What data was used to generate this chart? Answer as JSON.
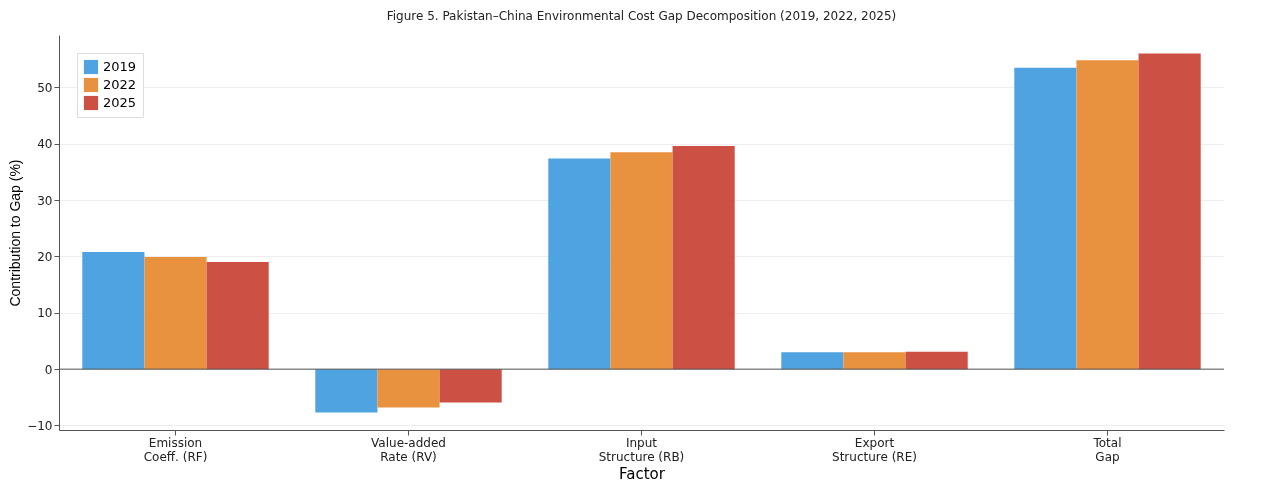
{
  "chart_data": {
    "type": "bar",
    "title": "Figure 5. Pakistan–China Environmental Cost Gap Decomposition (2019, 2022, 2025)",
    "xlabel": "Factor",
    "ylabel": "Contribution to Gap (%)",
    "categories": [
      "Emission Coeff. (RF)",
      "Value-added Rate (RV)",
      "Input Structure (RB)",
      "Export Structure (RE)",
      "Total Gap"
    ],
    "series": [
      {
        "name": "2019",
        "color": "#4fa3e0",
        "values": [
          20.8,
          -7.7,
          37.4,
          3.0,
          53.5
        ]
      },
      {
        "name": "2022",
        "color": "#e8913f",
        "values": [
          19.9,
          -6.8,
          38.5,
          3.0,
          54.8
        ]
      },
      {
        "name": "2025",
        "color": "#cc5044",
        "values": [
          19.0,
          -5.9,
          39.6,
          3.1,
          56.0
        ]
      }
    ],
    "ylim": [
      -10.8,
      59.3
    ],
    "yticks": [
      -10,
      0,
      10,
      20,
      30,
      40,
      50
    ],
    "grid": "y",
    "legend": "top left",
    "ref_lines": [
      {
        "axis": "y",
        "value": 0,
        "color": "#555555"
      }
    ]
  }
}
